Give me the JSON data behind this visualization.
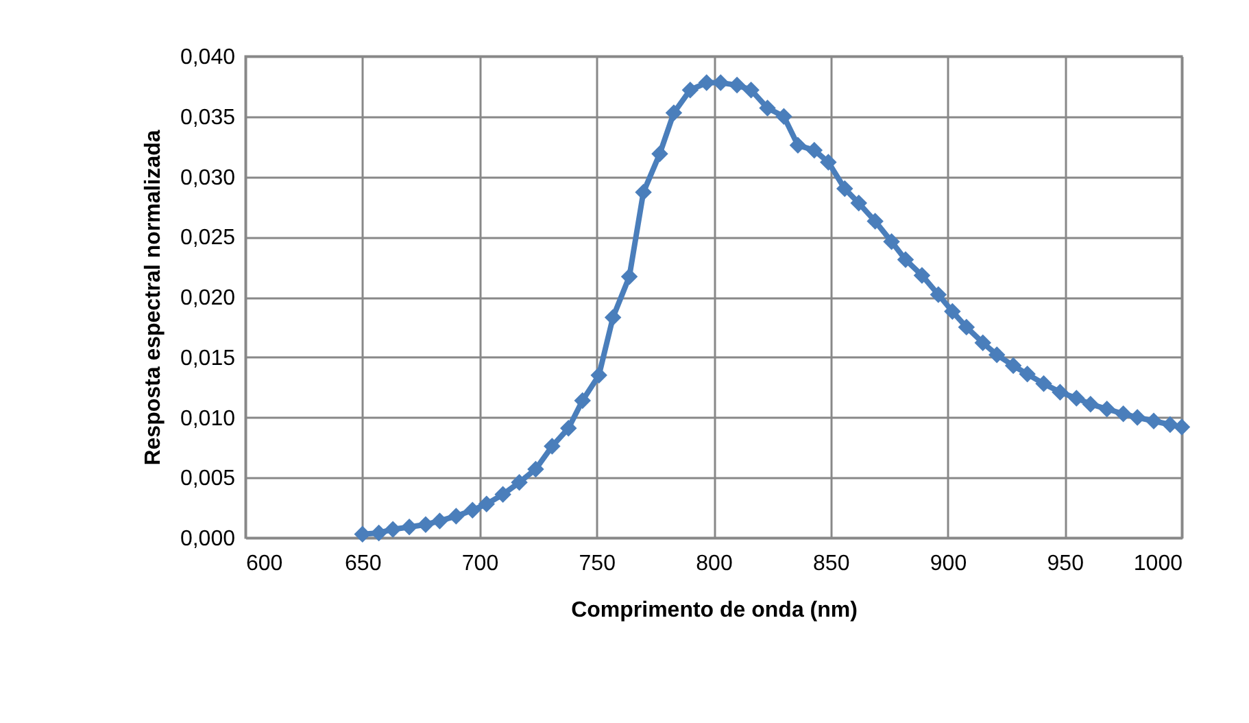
{
  "chart_data": {
    "type": "line",
    "xlabel": "Comprimento de onda (nm)",
    "ylabel": "Resposta espectral normalizada",
    "x": [
      650,
      657,
      663,
      670,
      677,
      683,
      690,
      697,
      703,
      710,
      717,
      724,
      731,
      738,
      744,
      751,
      757,
      764,
      770,
      777,
      783,
      790,
      797,
      803,
      810,
      816,
      823,
      830,
      836,
      843,
      849,
      856,
      862,
      869,
      876,
      882,
      889,
      896,
      902,
      908,
      915,
      921,
      928,
      934,
      941,
      948,
      955,
      961,
      968,
      975,
      981,
      988,
      995,
      1000
    ],
    "series": [
      {
        "color": "#4a7ebb",
        "values": [
          0.0003,
          0.0004,
          0.0007,
          0.0009,
          0.0011,
          0.0014,
          0.0018,
          0.0023,
          0.0028,
          0.0036,
          0.0046,
          0.0057,
          0.0076,
          0.0091,
          0.0114,
          0.0135,
          0.0183,
          0.0217,
          0.0287,
          0.0319,
          0.0353,
          0.0372,
          0.0378,
          0.0378,
          0.0376,
          0.0372,
          0.0357,
          0.035,
          0.0326,
          0.0322,
          0.0312,
          0.029,
          0.0278,
          0.0263,
          0.0246,
          0.0231,
          0.0218,
          0.0202,
          0.0188,
          0.0175,
          0.0162,
          0.0152,
          0.0143,
          0.0136,
          0.0128,
          0.0121,
          0.0116,
          0.0111,
          0.0107,
          0.0103,
          0.01,
          0.0097,
          0.0094,
          0.0092
        ]
      }
    ],
    "xlim": [
      600,
      1000
    ],
    "xticks": [
      600,
      650,
      700,
      750,
      800,
      850,
      900,
      950,
      1000
    ],
    "ylim": [
      0,
      0.04
    ],
    "yticks": [
      {
        "value": 0,
        "label": "0,000"
      },
      {
        "value": 0.005,
        "label": "0,005"
      },
      {
        "value": 0.01,
        "label": "0,010"
      },
      {
        "value": 0.015,
        "label": "0,015"
      },
      {
        "value": 0.02,
        "label": "0,020"
      },
      {
        "value": 0.025,
        "label": "0,025"
      },
      {
        "value": 0.03,
        "label": "0,030"
      },
      {
        "value": 0.035,
        "label": "0,035"
      },
      {
        "value": 0.04,
        "label": "0,040"
      }
    ],
    "grid": true,
    "marker": "diamond",
    "line_style": "solid"
  }
}
